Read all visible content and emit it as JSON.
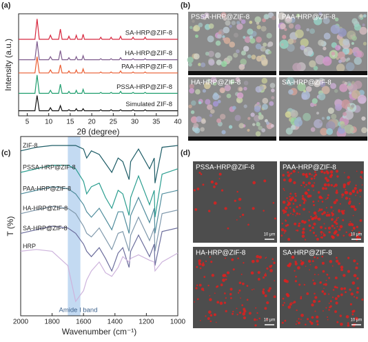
{
  "panel_labels": [
    "(a)",
    "(b)",
    "(c)",
    "(d)"
  ],
  "chart_data": [
    {
      "type": "line",
      "xlabel": "2θ (degree)",
      "ylabel": "Intensity (a.u.)",
      "x": [
        3,
        6.8,
        7.3,
        7.8,
        10,
        10.4,
        10.8,
        12.3,
        12.7,
        13.1,
        14.4,
        14.7,
        15,
        16.1,
        16.4,
        16.7,
        17.7,
        18,
        18.3,
        21.8,
        22.1,
        22.4,
        24.2,
        24.5,
        24.8,
        26.4,
        26.7,
        27,
        29.3,
        29.6,
        29.9,
        32.1,
        32.4,
        32.7,
        40
      ],
      "xlim": [
        3,
        40
      ],
      "xticks": [
        5,
        10,
        15,
        20,
        25,
        30,
        35,
        40
      ],
      "ylim": [
        0,
        100
      ],
      "label_side": "right",
      "series": [
        {
          "name": "SA-HRP@ZIF-8",
          "color": "#d7263d",
          "values": [
            75,
            75,
            95,
            75,
            75,
            79,
            75,
            75,
            85,
            75,
            75,
            78,
            75,
            75,
            79,
            75,
            75,
            80,
            75,
            75,
            77,
            75,
            75,
            77,
            75,
            75,
            78,
            75,
            75,
            77,
            75,
            75,
            77,
            75,
            75
          ]
        },
        {
          "name": "HA-HRP@ZIF-8",
          "color": "#7d5a8c",
          "values": [
            55,
            55,
            73,
            55,
            55,
            58,
            55,
            55,
            64,
            55,
            55,
            57,
            55,
            55,
            58,
            55,
            55,
            59,
            55,
            55,
            56,
            55,
            55,
            56,
            55,
            55,
            57,
            55,
            55,
            56,
            55,
            55,
            56,
            55,
            55
          ]
        },
        {
          "name": "PAA-HRP@ZIF-8",
          "color": "#ea5b2f",
          "values": [
            42,
            42,
            58,
            42,
            42,
            45,
            42,
            42,
            50,
            42,
            42,
            44,
            42,
            42,
            45,
            42,
            42,
            46,
            42,
            42,
            43,
            42,
            42,
            43,
            42,
            42,
            44,
            42,
            42,
            43,
            42,
            42,
            43,
            42,
            42
          ]
        },
        {
          "name": "PSSA-HRP@ZIF-8",
          "color": "#1f9e6e",
          "values": [
            22,
            22,
            40,
            22,
            22,
            25,
            22,
            22,
            31,
            22,
            22,
            24,
            22,
            22,
            25,
            22,
            22,
            26,
            22,
            22,
            23,
            22,
            22,
            23,
            22,
            22,
            24,
            22,
            22,
            23,
            22,
            22,
            23,
            22,
            22
          ]
        },
        {
          "name": "Simulated ZIF-8",
          "color": "#111111",
          "values": [
            5,
            5,
            20,
            5,
            5,
            8,
            5,
            5,
            10,
            5,
            5,
            6,
            5,
            5,
            7,
            5,
            5,
            7,
            5,
            5,
            6,
            5,
            5,
            6,
            5,
            5,
            6,
            5,
            5,
            6,
            5,
            5,
            6,
            5,
            5
          ]
        }
      ]
    },
    {
      "type": "line",
      "xlabel": "Wavenumber (cm⁻¹)",
      "ylabel": "T (%)",
      "x": [
        2000,
        1900,
        1800,
        1700,
        1650,
        1600,
        1580,
        1550,
        1500,
        1460,
        1420,
        1380,
        1350,
        1310,
        1300,
        1250,
        1180,
        1150,
        1145,
        1100,
        1000
      ],
      "xlim": [
        2000,
        1000
      ],
      "xticks": [
        2000,
        1800,
        1600,
        1400,
        1200,
        1000
      ],
      "ylim": [
        0,
        100
      ],
      "label_side": "left",
      "shaded_band": {
        "range": [
          1700,
          1620
        ],
        "label": "Amide I band",
        "color": "#b9d3f0"
      },
      "series": [
        {
          "name": "ZIF-8",
          "color": "#1d5c66",
          "values": [
            92,
            94,
            95,
            95,
            95,
            93,
            88,
            92,
            90,
            85,
            80,
            88,
            86,
            76,
            86,
            93,
            82,
            88,
            74,
            94,
            95
          ]
        },
        {
          "name": "PSSA-HRP@ZIF-8",
          "color": "#2a9d8f",
          "values": [
            80,
            82,
            84,
            84,
            82,
            75,
            68,
            72,
            74,
            66,
            60,
            70,
            68,
            56,
            66,
            78,
            62,
            70,
            55,
            79,
            82
          ]
        },
        {
          "name": "PAA-HRP@ZIF-8",
          "color": "#4f8c9c",
          "values": [
            68,
            70,
            72,
            71,
            68,
            62,
            58,
            55,
            60,
            54,
            48,
            58,
            58,
            46,
            56,
            66,
            52,
            60,
            46,
            68,
            70
          ]
        },
        {
          "name": "HA-HRP@ZIF-8",
          "color": "#7f98ab",
          "values": [
            57,
            59,
            61,
            60,
            57,
            50,
            46,
            44,
            49,
            43,
            37,
            46,
            47,
            36,
            45,
            55,
            42,
            49,
            36,
            57,
            59
          ]
        },
        {
          "name": "SA-HRP@ZIF-8",
          "color": "#6b6d9c",
          "values": [
            46,
            48,
            50,
            49,
            46,
            40,
            36,
            33,
            38,
            32,
            25,
            35,
            38,
            27,
            36,
            45,
            33,
            40,
            28,
            47,
            49
          ]
        },
        {
          "name": "HRP",
          "color": "#cdb3dc",
          "values": [
            36,
            37,
            36,
            28,
            8,
            14,
            20,
            25,
            30,
            24,
            22,
            27,
            33,
            30,
            32,
            34,
            31,
            30,
            25,
            30,
            35
          ]
        }
      ]
    }
  ],
  "sem_images": [
    "PSSA-HRP@ZIF-8",
    "PAA-HRP@ZIF-8",
    "HA-HRP@ZIF-8",
    "SA-HRP@ZIF-8"
  ],
  "fluorescence_images": {
    "labels": [
      "PSSA-HRP@ZIF-8",
      "PAA-HRP@ZIF-8",
      "HA-HRP@ZIF-8",
      "SA-HRP@ZIF-8"
    ],
    "scale_bar": "10 μm"
  }
}
